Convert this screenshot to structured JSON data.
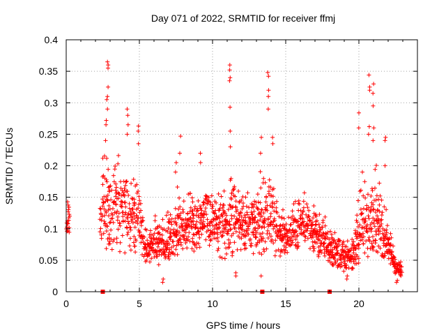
{
  "chart_data": {
    "type": "scatter",
    "title": "Day 071 of 2022, SRMTID for receiver ffmj",
    "xlabel": "GPS time / hours",
    "ylabel": "SRMTID / TECUs",
    "xlim": [
      0,
      24
    ],
    "ylim": [
      0,
      0.4
    ],
    "x_ticks": [
      0,
      5,
      10,
      15,
      20
    ],
    "x_tick_labels": [
      "0",
      "5",
      "10",
      "15",
      "20"
    ],
    "y_ticks": [
      0,
      0.05,
      0.1,
      0.15,
      0.2,
      0.25,
      0.3,
      0.35,
      0.4
    ],
    "y_tick_labels": [
      "0",
      "0.05",
      "0.1",
      "0.15",
      "0.2",
      "0.25",
      "0.3",
      "0.35",
      "0.4"
    ],
    "grid": true,
    "marker": "plus",
    "color": "#ff0000",
    "envelope": {
      "x": [
        0.0,
        0.2,
        2.3,
        2.5,
        2.8,
        3.0,
        3.3,
        3.6,
        4.0,
        4.3,
        4.6,
        5.0,
        5.3,
        5.6,
        6.0,
        6.5,
        7.0,
        7.5,
        8.0,
        8.5,
        9.0,
        9.5,
        10.0,
        10.5,
        11.0,
        11.3,
        11.7,
        12.0,
        12.5,
        13.0,
        13.3,
        13.6,
        14.0,
        14.3,
        14.6,
        15.0,
        15.3,
        15.6,
        16.0,
        16.5,
        17.0,
        17.5,
        17.8,
        18.1,
        18.5,
        18.8,
        19.2,
        19.6,
        20.0,
        20.3,
        20.6,
        21.0,
        21.3,
        21.6,
        22.0,
        22.3,
        22.6,
        22.9
      ],
      "low": [
        0.07,
        0.08,
        0.07,
        0.07,
        0.05,
        0.05,
        0.05,
        0.06,
        0.05,
        0.06,
        0.06,
        0.06,
        0.04,
        0.04,
        0.04,
        0.04,
        0.045,
        0.05,
        0.06,
        0.06,
        0.06,
        0.065,
        0.06,
        0.05,
        0.045,
        0.045,
        0.05,
        0.06,
        0.06,
        0.05,
        0.03,
        0.04,
        0.05,
        0.05,
        0.05,
        0.05,
        0.06,
        0.06,
        0.06,
        0.06,
        0.05,
        0.05,
        0.05,
        0.04,
        0.03,
        0.03,
        0.03,
        0.03,
        0.04,
        0.04,
        0.04,
        0.05,
        0.05,
        0.05,
        0.045,
        0.03,
        0.02,
        0.02
      ],
      "mid": [
        0.12,
        0.11,
        0.12,
        0.14,
        0.1,
        0.12,
        0.14,
        0.16,
        0.13,
        0.12,
        0.13,
        0.12,
        0.08,
        0.07,
        0.07,
        0.07,
        0.08,
        0.09,
        0.1,
        0.1,
        0.1,
        0.11,
        0.11,
        0.11,
        0.1,
        0.12,
        0.11,
        0.11,
        0.1,
        0.1,
        0.09,
        0.11,
        0.12,
        0.11,
        0.09,
        0.08,
        0.09,
        0.1,
        0.11,
        0.1,
        0.09,
        0.08,
        0.07,
        0.06,
        0.06,
        0.055,
        0.05,
        0.055,
        0.08,
        0.11,
        0.11,
        0.1,
        0.1,
        0.08,
        0.07,
        0.05,
        0.035,
        0.03
      ],
      "high": [
        0.16,
        0.14,
        0.17,
        0.24,
        0.22,
        0.2,
        0.22,
        0.21,
        0.2,
        0.18,
        0.18,
        0.17,
        0.12,
        0.11,
        0.12,
        0.14,
        0.16,
        0.18,
        0.18,
        0.16,
        0.16,
        0.18,
        0.17,
        0.16,
        0.18,
        0.2,
        0.18,
        0.16,
        0.16,
        0.16,
        0.2,
        0.22,
        0.21,
        0.18,
        0.15,
        0.13,
        0.13,
        0.15,
        0.17,
        0.16,
        0.14,
        0.13,
        0.12,
        0.11,
        0.1,
        0.09,
        0.09,
        0.11,
        0.16,
        0.22,
        0.23,
        0.22,
        0.2,
        0.16,
        0.12,
        0.09,
        0.06,
        0.05
      ]
    },
    "spikes": [
      {
        "x": 2.7,
        "y": [
          0.272,
          0.265,
          0.24
        ]
      },
      {
        "x": 2.8,
        "y": [
          0.31,
          0.305,
          0.29
        ]
      },
      {
        "x": 2.85,
        "y": [
          0.365,
          0.36,
          0.355,
          0.325
        ]
      },
      {
        "x": 4.2,
        "y": [
          0.29,
          0.28,
          0.265,
          0.25
        ]
      },
      {
        "x": 4.9,
        "y": [
          0.263,
          0.255,
          0.235
        ]
      },
      {
        "x": 6.6,
        "y": [
          0.015,
          0.02
        ]
      },
      {
        "x": 7.5,
        "y": [
          0.205,
          0.19
        ]
      },
      {
        "x": 7.8,
        "y": [
          0.247,
          0.22
        ]
      },
      {
        "x": 9.2,
        "y": [
          0.22,
          0.205
        ]
      },
      {
        "x": 11.2,
        "y": [
          0.36,
          0.352,
          0.34,
          0.335,
          0.293,
          0.255,
          0.23
        ]
      },
      {
        "x": 11.6,
        "y": [
          0.03,
          0.025
        ]
      },
      {
        "x": 13.3,
        "y": [
          0.245,
          0.22,
          0.025
        ]
      },
      {
        "x": 13.8,
        "y": [
          0.348,
          0.342,
          0.32,
          0.31,
          0.29
        ]
      },
      {
        "x": 14.1,
        "y": [
          0.245,
          0.235
        ]
      },
      {
        "x": 19.2,
        "y": [
          0.025,
          0.02
        ]
      },
      {
        "x": 20.0,
        "y": [
          0.284,
          0.26
        ]
      },
      {
        "x": 20.7,
        "y": [
          0.344,
          0.325,
          0.32,
          0.262,
          0.25
        ]
      },
      {
        "x": 21.0,
        "y": [
          0.33,
          0.315,
          0.295,
          0.26,
          0.24
        ]
      },
      {
        "x": 21.8,
        "y": [
          0.245,
          0.24,
          0.2
        ]
      },
      {
        "x": 22.6,
        "y": [
          0.015,
          0.018
        ]
      }
    ],
    "axis_markers": [
      {
        "x": 2.5,
        "y": 0
      },
      {
        "x": 13.4,
        "y": 0
      },
      {
        "x": 18.0,
        "y": 0
      }
    ]
  }
}
